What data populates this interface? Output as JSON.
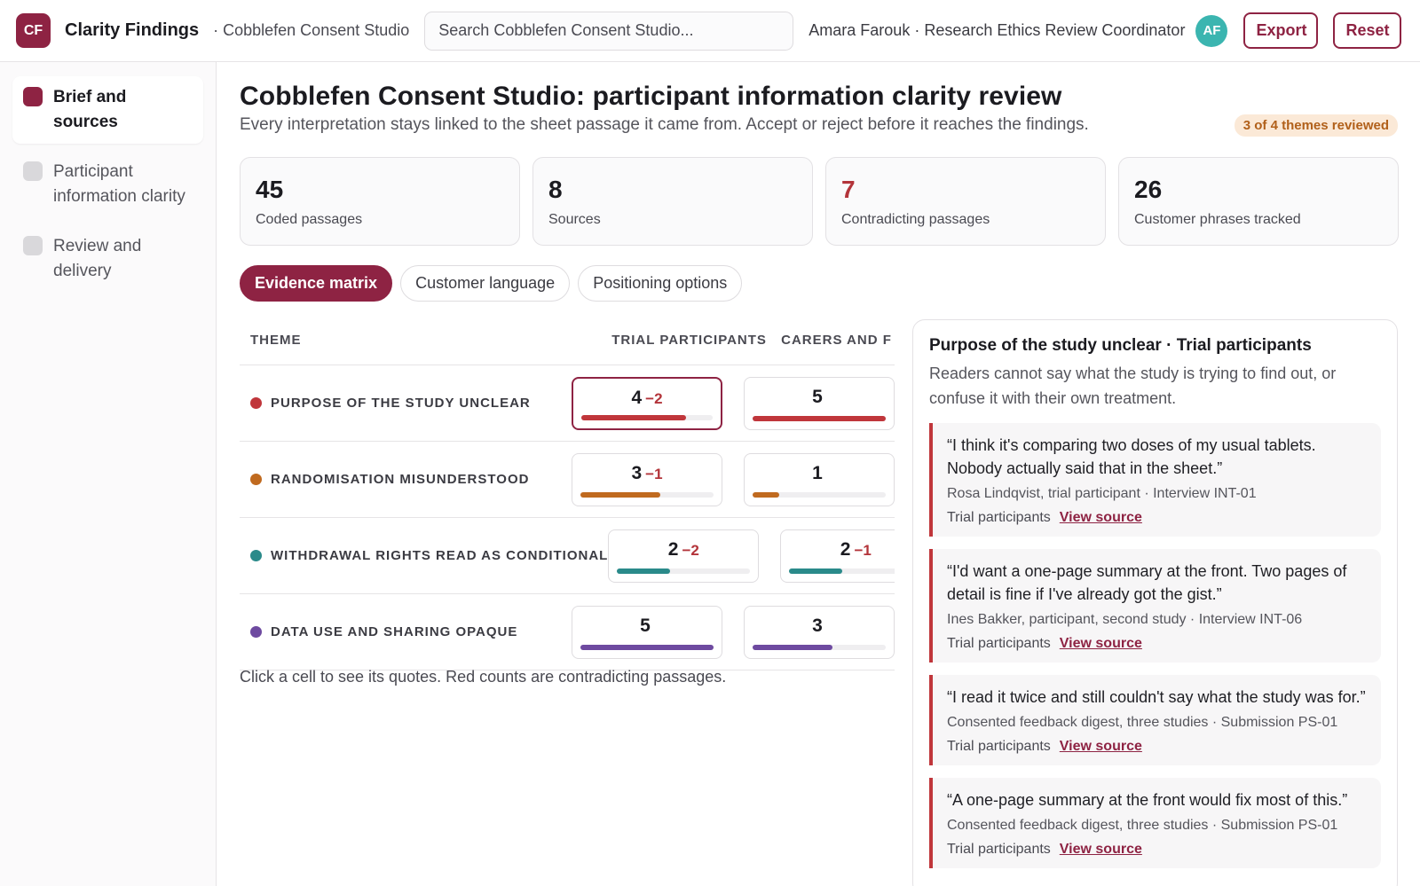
{
  "header": {
    "logo_text": "CF",
    "app_title": "Clarity Findings",
    "workspace": "· Cobblefen Consent Studio",
    "search_placeholder": "Search Cobblefen Consent Studio...",
    "user": "Amara Farouk · Research Ethics Review Coordinator",
    "avatar_initials": "AF",
    "export_label": "Export",
    "reset_label": "Reset",
    "brand_color": "#8e2343",
    "avatar_color": "#3bb5b0"
  },
  "sidebar": {
    "items": [
      {
        "label": "Brief and sources",
        "active": true
      },
      {
        "label": "Participant information clarity",
        "active": false
      },
      {
        "label": "Review and delivery",
        "active": false
      }
    ]
  },
  "main": {
    "title": "Cobblefen Consent Studio: participant information clarity review",
    "description": "Every interpretation stays linked to the sheet passage it came from. Accept or reject before it reaches the findings.",
    "review_badge": "3 of 4 themes reviewed",
    "stats": [
      {
        "value": "45",
        "label": "Coded passages",
        "alert": false
      },
      {
        "value": "8",
        "label": "Sources",
        "alert": false
      },
      {
        "value": "7",
        "label": "Contradicting passages",
        "alert": true
      },
      {
        "value": "26",
        "label": "Customer phrases tracked",
        "alert": false
      }
    ],
    "tabs": [
      {
        "label": "Evidence matrix",
        "active": true
      },
      {
        "label": "Customer language",
        "active": false
      },
      {
        "label": "Positioning options",
        "active": false
      }
    ]
  },
  "matrix": {
    "columns": {
      "theme": "THEME",
      "col1": "TRIAL PARTICIPANTS",
      "col2": "CARERS AND F"
    },
    "max_count": 5,
    "rows": [
      {
        "theme": "PURPOSE OF THE STUDY UNCLEAR",
        "color": "#c0363b",
        "cells": [
          {
            "count": "4",
            "neg": "−2",
            "value": 4,
            "selected": true
          },
          {
            "count": "5",
            "neg": "",
            "value": 5,
            "selected": false
          }
        ]
      },
      {
        "theme": "RANDOMISATION MISUNDERSTOOD",
        "color": "#c06a1f",
        "cells": [
          {
            "count": "3",
            "neg": "−1",
            "value": 3,
            "selected": false
          },
          {
            "count": "1",
            "neg": "",
            "value": 1,
            "selected": false
          }
        ]
      },
      {
        "theme": "WITHDRAWAL RIGHTS READ AS CONDITIONAL",
        "color": "#2a8a8a",
        "cells": [
          {
            "count": "2",
            "neg": "−2",
            "value": 2,
            "selected": false
          },
          {
            "count": "2",
            "neg": "−1",
            "value": 2,
            "selected": false
          }
        ]
      },
      {
        "theme": "DATA USE AND SHARING OPAQUE",
        "color": "#6e4aa0",
        "cells": [
          {
            "count": "5",
            "neg": "",
            "value": 5,
            "selected": false
          },
          {
            "count": "3",
            "neg": "",
            "value": 3,
            "selected": false
          }
        ]
      }
    ],
    "hint": "Click a cell to see its quotes. Red counts are contradicting passages."
  },
  "panel": {
    "title": "Purpose of the study unclear · Trial participants",
    "description": "Readers cannot say what the study is trying to find out, or confuse it with their own treatment.",
    "link_label": "View source",
    "quotes": [
      {
        "text": "“I think it's comparing two doses of my usual tablets. Nobody actually said that in the sheet.”",
        "meta": "Rosa Lindqvist, trial participant · Interview INT-01",
        "segment": "Trial participants"
      },
      {
        "text": "“I'd want a one-page summary at the front. Two pages of detail is fine if I've already got the gist.”",
        "meta": "Ines Bakker, participant, second study · Interview INT-06",
        "segment": "Trial participants"
      },
      {
        "text": "“I read it twice and still couldn't say what the study was for.”",
        "meta": "Consented feedback digest, three studies · Submission PS-01",
        "segment": "Trial participants"
      },
      {
        "text": "“A one-page summary at the front would fix most of this.”",
        "meta": "Consented feedback digest, three studies · Submission PS-01",
        "segment": "Trial participants"
      }
    ]
  }
}
